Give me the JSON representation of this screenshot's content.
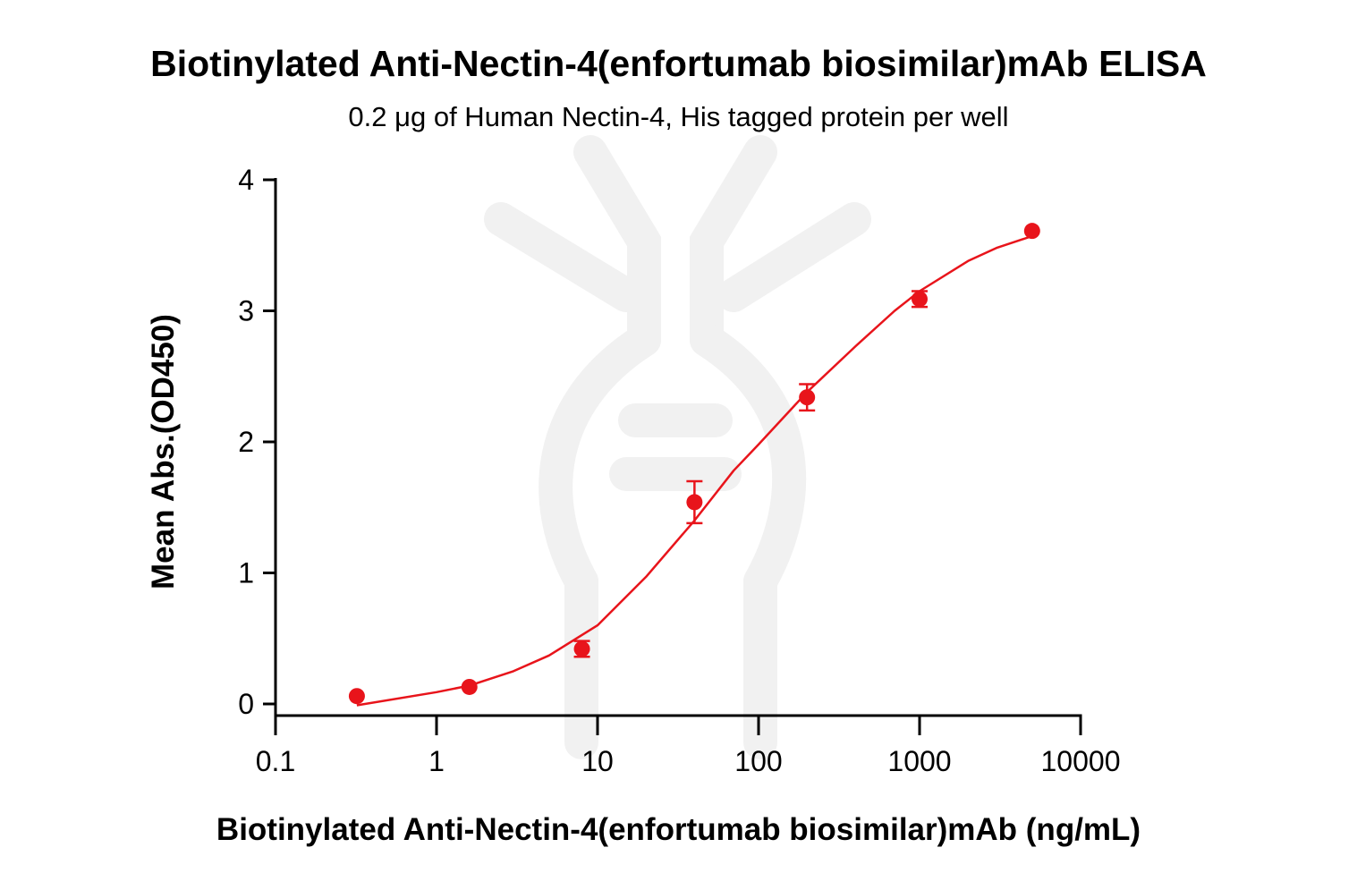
{
  "chart_data": {
    "type": "scatter",
    "title": "Biotinylated Anti-Nectin-4(enfortumab biosimilar)mAb ELISA",
    "subtitle": "0.2 μg of Human Nectin-4, His tagged protein per well",
    "xlabel": "Biotinylated Anti-Nectin-4(enfortumab biosimilar)mAb (ng/mL)",
    "ylabel": "Mean Abs.(OD450)",
    "xscale": "log",
    "xlim": [
      0.1,
      10000
    ],
    "ylim": [
      0,
      4
    ],
    "x_ticks": [
      "0.1",
      "1",
      "10",
      "100",
      "1000",
      "10000"
    ],
    "y_ticks": [
      "0",
      "1",
      "2",
      "3",
      "4"
    ],
    "grid": false,
    "legend": "none",
    "series_color": "#e8141b",
    "points": [
      {
        "x": 0.32,
        "y": 0.06,
        "err": 0.01
      },
      {
        "x": 1.6,
        "y": 0.13,
        "err": 0.01
      },
      {
        "x": 8,
        "y": 0.42,
        "err": 0.06
      },
      {
        "x": 40,
        "y": 1.54,
        "err": 0.16
      },
      {
        "x": 200,
        "y": 2.34,
        "err": 0.1
      },
      {
        "x": 1000,
        "y": 3.09,
        "err": 0.06
      },
      {
        "x": 5000,
        "y": 3.61,
        "err": 0.02
      }
    ],
    "fit_curve": [
      {
        "x": 0.32,
        "y": -0.01
      },
      {
        "x": 1,
        "y": 0.09
      },
      {
        "x": 1.6,
        "y": 0.14
      },
      {
        "x": 3,
        "y": 0.25
      },
      {
        "x": 5,
        "y": 0.37
      },
      {
        "x": 10,
        "y": 0.6
      },
      {
        "x": 20,
        "y": 0.97
      },
      {
        "x": 40,
        "y": 1.4
      },
      {
        "x": 70,
        "y": 1.78
      },
      {
        "x": 100,
        "y": 1.98
      },
      {
        "x": 200,
        "y": 2.38
      },
      {
        "x": 400,
        "y": 2.73
      },
      {
        "x": 700,
        "y": 3.0
      },
      {
        "x": 1000,
        "y": 3.15
      },
      {
        "x": 2000,
        "y": 3.38
      },
      {
        "x": 3000,
        "y": 3.48
      },
      {
        "x": 5000,
        "y": 3.57
      }
    ]
  }
}
